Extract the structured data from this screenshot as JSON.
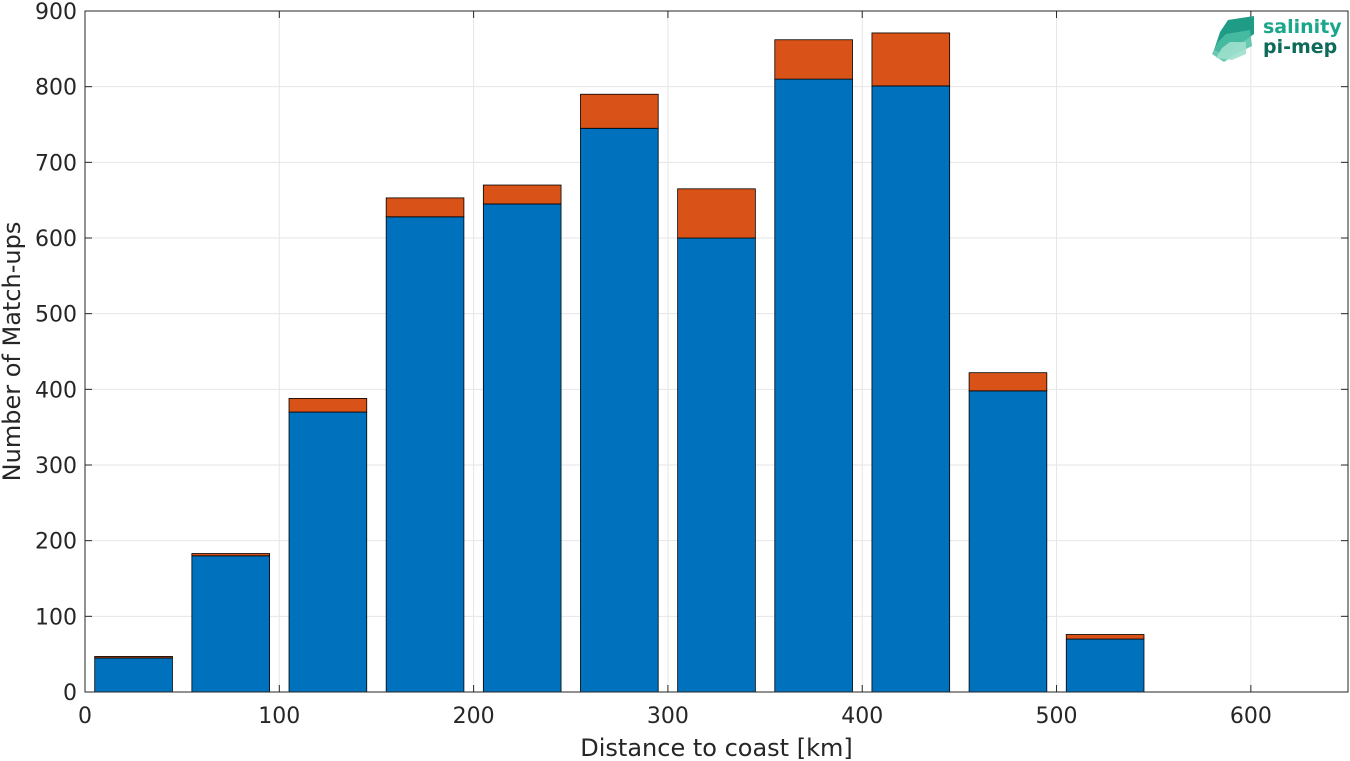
{
  "chart_data": {
    "type": "bar",
    "stacked": true,
    "title": "",
    "xlabel": "Distance to coast [km]",
    "ylabel": "Number of Match-ups",
    "xlim": [
      0,
      650
    ],
    "ylim": [
      0,
      900
    ],
    "xticks": [
      0,
      100,
      200,
      300,
      400,
      500,
      600
    ],
    "yticks": [
      0,
      100,
      200,
      300,
      400,
      500,
      600,
      700,
      800,
      900
    ],
    "grid": true,
    "bin_width": 50,
    "x": [
      25,
      75,
      125,
      175,
      225,
      275,
      325,
      375,
      425,
      475,
      525
    ],
    "series": [
      {
        "color": "#0072bd",
        "values": [
          45,
          180,
          370,
          628,
          645,
          745,
          600,
          810,
          801,
          398,
          70
        ]
      },
      {
        "color": "#d95319",
        "values": [
          2,
          3,
          18,
          25,
          25,
          45,
          65,
          52,
          70,
          24,
          6
        ]
      }
    ]
  },
  "logo": {
    "line1": "salinity",
    "line2": "pi-mep",
    "color_primary": "#1aa68a",
    "color_secondary": "#0e6b5a"
  }
}
